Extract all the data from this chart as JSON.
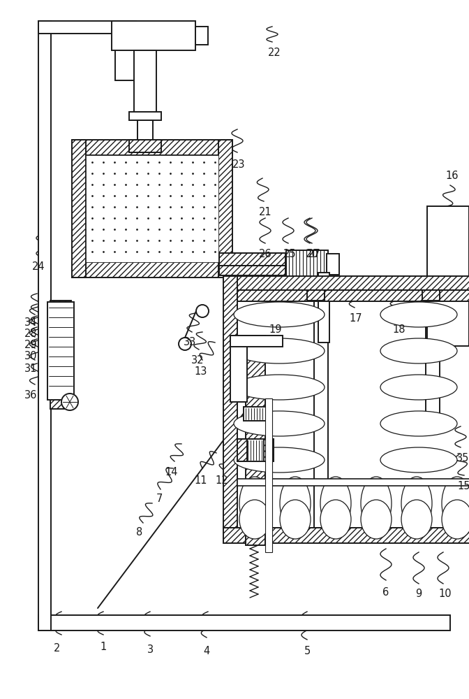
{
  "bg_color": "#ffffff",
  "line_color": "#1a1a1a",
  "label_color": "#1a1a1a",
  "fig_width": 6.72,
  "fig_height": 10.0,
  "lw_main": 1.4,
  "lw_thin": 0.9,
  "lw_hatch": 1.2,
  "label_fontsize": 10.5
}
